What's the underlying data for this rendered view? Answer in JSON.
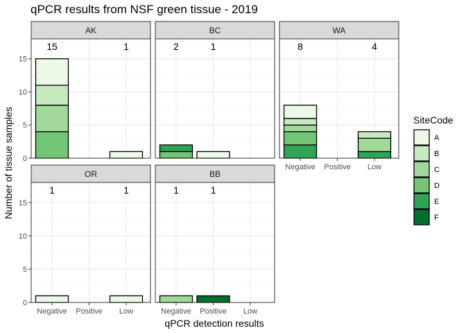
{
  "chart_data": {
    "type": "bar",
    "stacked": true,
    "faceted": true,
    "title": "qPCR results from NSF green tissue - 2019",
    "xlabel": "qPCR detection results",
    "ylabel": "Number of tissue samples",
    "categories": [
      "Negative",
      "Positive",
      "Low"
    ],
    "ylim": [
      0,
      18
    ],
    "yticks": [
      0,
      5,
      10,
      15
    ],
    "grid": true,
    "legend": {
      "title": "SiteCode",
      "position": "right",
      "entries": [
        "A",
        "B",
        "C",
        "D",
        "E",
        "F"
      ],
      "colors": [
        "#edf8e9",
        "#c7e9c0",
        "#a1d99b",
        "#74c476",
        "#31a354",
        "#006d2c"
      ]
    },
    "panels": [
      {
        "name": "AK",
        "bars": [
          {
            "category": "Negative",
            "total": 15,
            "label": "15",
            "stack": [
              {
                "site": "D",
                "value": 4
              },
              {
                "site": "C",
                "value": 4
              },
              {
                "site": "B",
                "value": 3
              },
              {
                "site": "A",
                "value": 4
              }
            ]
          },
          {
            "category": "Low",
            "total": 1,
            "label": "1",
            "stack": [
              {
                "site": "A",
                "value": 1
              }
            ]
          }
        ]
      },
      {
        "name": "BC",
        "bars": [
          {
            "category": "Negative",
            "total": 2,
            "label": "2",
            "stack": [
              {
                "site": "D",
                "value": 1
              },
              {
                "site": "E",
                "value": 1
              }
            ]
          },
          {
            "category": "Positive",
            "total": 1,
            "label": "1",
            "stack": [
              {
                "site": "A",
                "value": 1
              }
            ]
          }
        ]
      },
      {
        "name": "WA",
        "bars": [
          {
            "category": "Negative",
            "total": 8,
            "label": "8",
            "stack": [
              {
                "site": "E",
                "value": 2
              },
              {
                "site": "D",
                "value": 2
              },
              {
                "site": "C",
                "value": 1
              },
              {
                "site": "B",
                "value": 1
              },
              {
                "site": "A",
                "value": 2
              }
            ]
          },
          {
            "category": "Low",
            "total": 4,
            "label": "4",
            "stack": [
              {
                "site": "E",
                "value": 1
              },
              {
                "site": "C",
                "value": 2
              },
              {
                "site": "B",
                "value": 1
              }
            ]
          }
        ]
      },
      {
        "name": "OR",
        "bars": [
          {
            "category": "Negative",
            "total": 1,
            "label": "1",
            "stack": [
              {
                "site": "A",
                "value": 1
              }
            ]
          },
          {
            "category": "Low",
            "total": 1,
            "label": "1",
            "stack": [
              {
                "site": "A",
                "value": 1
              }
            ]
          }
        ]
      },
      {
        "name": "BB",
        "bars": [
          {
            "category": "Negative",
            "total": 1,
            "label": "1",
            "stack": [
              {
                "site": "C",
                "value": 1
              }
            ]
          },
          {
            "category": "Positive",
            "total": 1,
            "label": "1",
            "stack": [
              {
                "site": "F",
                "value": 1
              }
            ]
          }
        ]
      }
    ]
  }
}
